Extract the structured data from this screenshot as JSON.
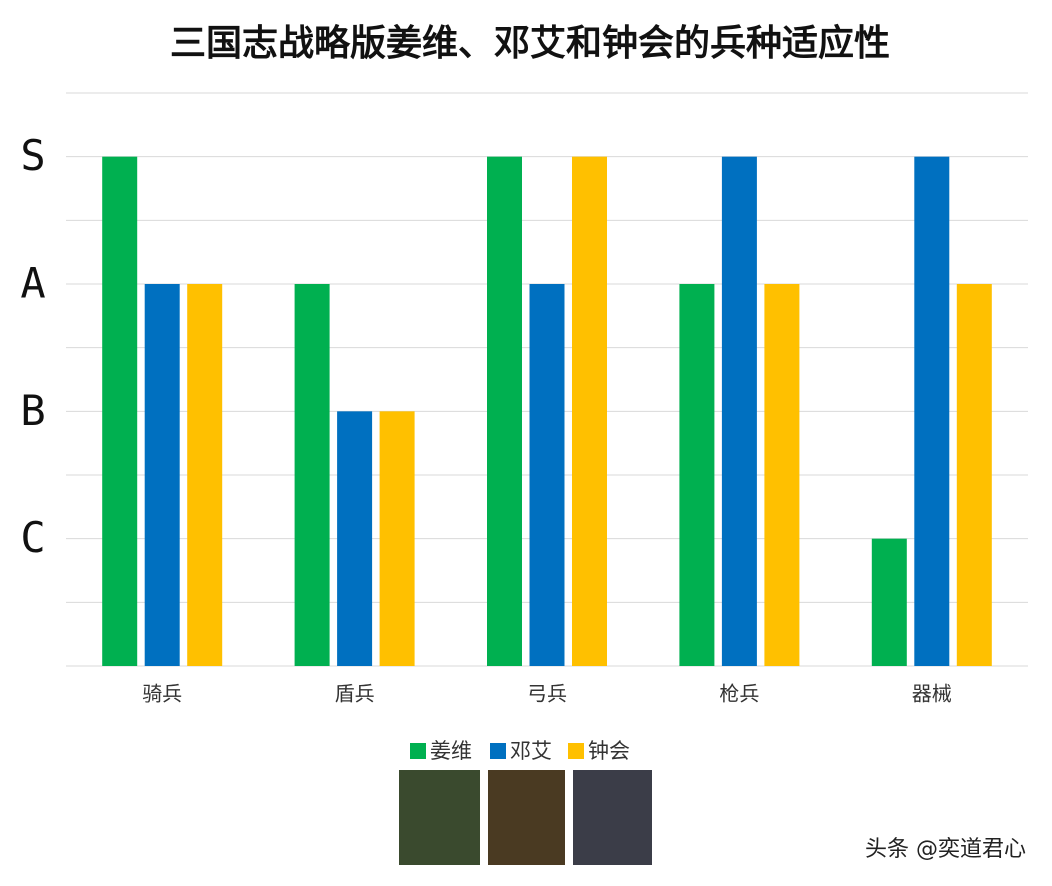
{
  "chart_data": {
    "type": "bar",
    "title": "三国志战略版姜维、邓艾和钟会的兵种适应性",
    "categories": [
      "骑兵",
      "盾兵",
      "弓兵",
      "枪兵",
      "器械"
    ],
    "series": [
      {
        "name": "姜维",
        "color": "#00b050",
        "values": [
          8,
          6,
          8,
          6,
          2
        ]
      },
      {
        "name": "邓艾",
        "color": "#0070c0",
        "values": [
          6,
          4,
          6,
          8,
          8
        ]
      },
      {
        "name": "钟会",
        "color": "#ffc000",
        "values": [
          6,
          4,
          8,
          6,
          6
        ]
      }
    ],
    "ylim": [
      0,
      9
    ],
    "yticks": [
      {
        "value": 2,
        "label": "C"
      },
      {
        "value": 4,
        "label": "B"
      },
      {
        "value": 6,
        "label": "A"
      },
      {
        "value": 8,
        "label": "S"
      }
    ],
    "minor_yticks": [
      0,
      1,
      3,
      5,
      7,
      9
    ],
    "grid": true,
    "legend": "bottom"
  },
  "watermark": "头条 @奕道君心"
}
